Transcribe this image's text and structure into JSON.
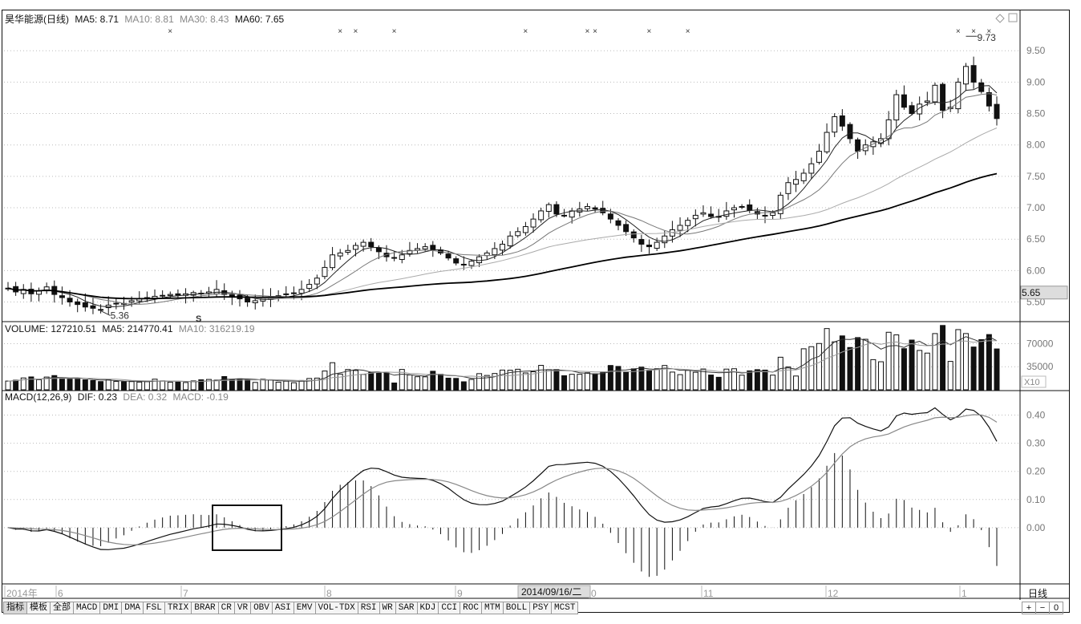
{
  "price_header": {
    "title": "昊华能源(日线)",
    "ma5": "MA5: 8.71",
    "ma10": "MA10: 8.81",
    "ma30": "MA30: 8.43",
    "ma60": "MA60: 7.65"
  },
  "volume_header": {
    "label": "VOLUME: 127210.51",
    "ma5": "MA5: 214770.41",
    "ma10": "MA10: 316219.19"
  },
  "macd_header": {
    "label": "MACD(12,26,9)",
    "dif": "DIF: 0.23",
    "dea": "DEA: 0.32",
    "macd": "MACD: -0.19"
  },
  "annotations": {
    "high": "9.73",
    "low": "5.36",
    "current_price_tag": "5.65",
    "s_marker": "S",
    "x10": "X10"
  },
  "x_axis": {
    "labels": [
      "2014年",
      "6",
      "7",
      "8",
      "9",
      "0",
      "11",
      "12",
      "1"
    ],
    "cursor_date": "2014/09/16/二"
  },
  "period_label": "日线",
  "indicator_tabs": [
    "指标",
    "模板",
    "全部",
    "MACD",
    "DMI",
    "DMA",
    "FSL",
    "TRIX",
    "BRAR",
    "CR",
    "VR",
    "OBV",
    "ASI",
    "EMV",
    "VOL-TDX",
    "RSI",
    "WR",
    "SAR",
    "KDJ",
    "CCI",
    "ROC",
    "MTM",
    "BOLL",
    "PSY",
    "MCST"
  ],
  "zoom_buttons": [
    "+",
    "−",
    "0"
  ],
  "chart_data": [
    {
      "type": "candlestick",
      "title": "昊华能源(日线)",
      "yticks": [
        "9.50",
        "9.00",
        "8.50",
        "8.00",
        "7.50",
        "7.00",
        "6.50",
        "6.00",
        "5.50"
      ],
      "ylim": [
        5.2,
        9.95
      ],
      "series_points_close": [
        5.72,
        5.66,
        5.7,
        5.63,
        5.68,
        5.74,
        5.62,
        5.57,
        5.5,
        5.46,
        5.42,
        5.4,
        5.38,
        5.45,
        5.48,
        5.47,
        5.52,
        5.55,
        5.57,
        5.59,
        5.6,
        5.62,
        5.61,
        5.63,
        5.65,
        5.64,
        5.66,
        5.7,
        5.62,
        5.58,
        5.55,
        5.5,
        5.52,
        5.56,
        5.58,
        5.6,
        5.62,
        5.64,
        5.7,
        5.78,
        5.88,
        6.05,
        6.25,
        6.28,
        6.32,
        6.4,
        6.45,
        6.38,
        6.3,
        6.22,
        6.2,
        6.25,
        6.32,
        6.35,
        6.38,
        6.33,
        6.28,
        6.2,
        6.12,
        6.1,
        6.15,
        6.22,
        6.28,
        6.35,
        6.42,
        6.55,
        6.62,
        6.7,
        6.82,
        6.95,
        7.05,
        6.9,
        6.88,
        6.95,
        6.98,
        7.02,
        6.98,
        6.92,
        6.82,
        6.72,
        6.62,
        6.52,
        6.42,
        6.38,
        6.45,
        6.55,
        6.65,
        6.72,
        6.8,
        6.88,
        6.92,
        6.86,
        6.85,
        6.95,
        7.0,
        7.02,
        6.96,
        6.9,
        6.88,
        6.92,
        7.2,
        7.4,
        7.45,
        7.55,
        7.7,
        7.9,
        8.2,
        8.45,
        8.3,
        8.1,
        7.9,
        8.0,
        8.05,
        8.1,
        8.4,
        8.8,
        8.6,
        8.5,
        8.65,
        8.7,
        8.95,
        8.55,
        8.6,
        9.0,
        9.25,
        9.0,
        8.85,
        8.62,
        8.42
      ]
    },
    {
      "type": "bar",
      "title": "VOLUME",
      "yticks": [
        "70000",
        "35000"
      ],
      "note": "volume bars"
    },
    {
      "type": "line",
      "title": "MACD(12,26,9)",
      "yticks": [
        "0.40",
        "0.30",
        "0.20",
        "0.10",
        "0.00"
      ],
      "ylim": [
        -0.2,
        0.45
      ]
    }
  ]
}
